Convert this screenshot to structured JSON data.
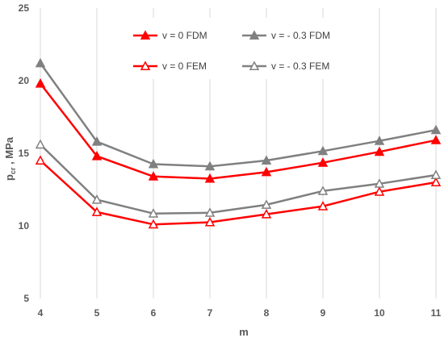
{
  "chart_data": {
    "type": "line",
    "xlabel": "m",
    "ylabel_main": "p",
    "ylabel_sub": "cr",
    "ylabel_rest": " , MPa",
    "x": [
      4,
      5,
      6,
      7,
      8,
      9,
      10,
      11
    ],
    "xlim": [
      4,
      11
    ],
    "ylim": [
      5,
      25
    ],
    "yticks": [
      5,
      10,
      15,
      20,
      25
    ],
    "grid": "vertical",
    "legend_position": "top-center",
    "series": [
      {
        "name": "v = 0 FDM",
        "color": "#ff0000",
        "marker": "filled-triangle",
        "values": [
          19.8,
          14.8,
          13.4,
          13.25,
          13.7,
          14.35,
          15.1,
          15.9
        ]
      },
      {
        "name": "v = - 0.3 FDM",
        "color": "#808080",
        "marker": "filled-triangle",
        "values": [
          21.2,
          15.8,
          14.25,
          14.1,
          14.5,
          15.15,
          15.85,
          16.6
        ]
      },
      {
        "name": "v = 0 FEM",
        "color": "#ff0000",
        "marker": "open-triangle",
        "values": [
          14.5,
          10.95,
          10.1,
          10.25,
          10.8,
          11.35,
          12.35,
          13.0
        ]
      },
      {
        "name": "v = - 0.3 FEM",
        "color": "#808080",
        "marker": "open-triangle",
        "values": [
          15.6,
          11.8,
          10.85,
          10.9,
          11.45,
          12.4,
          12.9,
          13.5
        ]
      }
    ]
  }
}
